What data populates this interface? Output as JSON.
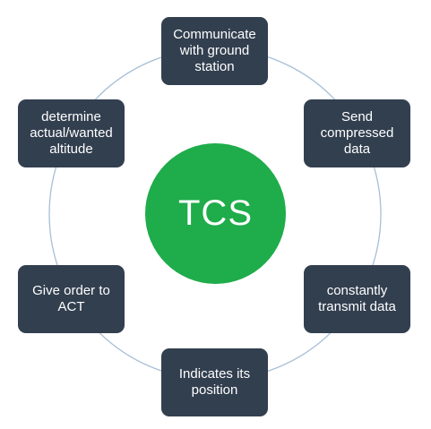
{
  "colors": {
    "node_fill": "#323f4f",
    "center_fill": "#1fac4b",
    "ring_stroke": "#a6bfd6"
  },
  "center": {
    "label": "TCS"
  },
  "nodes": [
    {
      "label": "Communicate\nwith ground\nstation"
    },
    {
      "label": "Send\ncompressed\ndata"
    },
    {
      "label": "constantly\ntransmit data"
    },
    {
      "label": "Indicates its\nposition"
    },
    {
      "label": "Give order to\nACT"
    },
    {
      "label": "determine\nactual/wanted\naltitude"
    }
  ]
}
